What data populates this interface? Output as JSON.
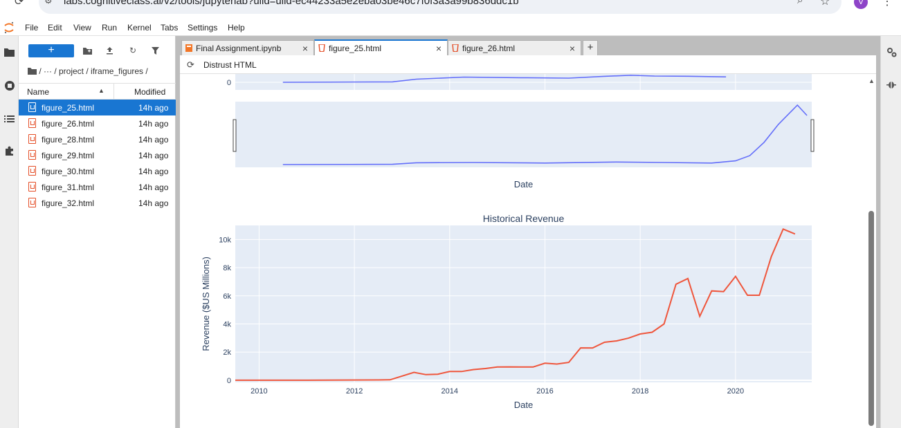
{
  "browser": {
    "url": "labs.cognitiveclass.ai/v2/tools/jupyterlab?ulid=ulid-ec44233a5e2eba03be46c7f0f3a3a99b836ddc1b",
    "profile_initial": "V"
  },
  "menu": {
    "items": [
      "File",
      "Edit",
      "View",
      "Run",
      "Kernel",
      "Tabs",
      "Settings",
      "Help"
    ]
  },
  "file_browser": {
    "new_label": "+",
    "breadcrumb": "/  ···  / project / iframe_figures /",
    "columns": {
      "name": "Name",
      "modified": "Modified"
    },
    "files": [
      {
        "name": "figure_25.html",
        "modified": "14h ago",
        "selected": true
      },
      {
        "name": "figure_26.html",
        "modified": "14h ago",
        "selected": false
      },
      {
        "name": "figure_28.html",
        "modified": "14h ago",
        "selected": false
      },
      {
        "name": "figure_29.html",
        "modified": "14h ago",
        "selected": false
      },
      {
        "name": "figure_30.html",
        "modified": "14h ago",
        "selected": false
      },
      {
        "name": "figure_31.html",
        "modified": "14h ago",
        "selected": false
      },
      {
        "name": "figure_32.html",
        "modified": "14h ago",
        "selected": false
      }
    ]
  },
  "tabs": [
    {
      "label": "Final Assignment.ipynb",
      "active": false,
      "icon": "notebook-icon"
    },
    {
      "label": "figure_25.html",
      "active": true,
      "icon": "html-file-icon"
    },
    {
      "label": "figure_26.html",
      "active": false,
      "icon": "html-file-icon"
    }
  ],
  "toolbar": {
    "distrust_label": "Distrust HTML"
  },
  "colors": {
    "accent": "#1976d2",
    "plot_bg": "#e5ecf6",
    "upper_line": "#636efa",
    "revenue_line": "#ef553b"
  },
  "chart_data": [
    {
      "type": "line",
      "title": "",
      "xlabel": "Date",
      "ylabel": "",
      "visible_ytick": "0",
      "note": "upper share-price panel, cropped at top",
      "series": [
        {
          "name": "",
          "x": [
            2010.5,
            2012.8,
            2013.3,
            2014.3,
            2015.5,
            2016.5,
            2017.2,
            2017.8,
            2018.3,
            2019.0,
            2019.8
          ],
          "values": [
            0,
            0.2,
            1.5,
            2.5,
            2.2,
            2.0,
            2.8,
            3.4,
            3.0,
            2.9,
            2.6
          ]
        }
      ]
    },
    {
      "type": "area",
      "title": "",
      "note": "range slider preview",
      "series": [
        {
          "name": "",
          "x": [
            2010.5,
            2012.8,
            2013.3,
            2014.5,
            2016.0,
            2017.5,
            2018.5,
            2019.5,
            2020.0,
            2020.3,
            2020.6,
            2020.9,
            2021.3,
            2021.5
          ],
          "values": [
            0,
            0.2,
            1.2,
            1.4,
            1.0,
            1.7,
            1.4,
            1.0,
            2.5,
            6.0,
            15.0,
            27.0,
            40.0,
            33.0
          ]
        }
      ]
    },
    {
      "type": "line",
      "title": "Historical Revenue",
      "xlabel": "Date",
      "ylabel": "Revenue ($US Millions)",
      "xticks": [
        "2010",
        "2012",
        "2014",
        "2016",
        "2018",
        "2020"
      ],
      "yticks": [
        "0",
        "2k",
        "4k",
        "6k",
        "8k",
        "10k"
      ],
      "ylim": [
        -150,
        11000
      ],
      "xlim": [
        2009.5,
        2021.6
      ],
      "grid": true,
      "series": [
        {
          "name": "Revenue",
          "x": [
            2009.5,
            2011.0,
            2012.5,
            2012.75,
            2013.25,
            2013.5,
            2013.75,
            2014.0,
            2014.25,
            2014.5,
            2014.75,
            2015.0,
            2015.25,
            2015.5,
            2015.75,
            2016.0,
            2016.25,
            2016.5,
            2016.75,
            2017.0,
            2017.25,
            2017.5,
            2017.75,
            2018.0,
            2018.25,
            2018.5,
            2018.75,
            2019.0,
            2019.25,
            2019.5,
            2019.75,
            2020.0,
            2020.25,
            2020.5,
            2020.75,
            2021.0,
            2021.25
          ],
          "values": [
            0,
            0,
            20,
            30,
            560,
            400,
            430,
            620,
            620,
            760,
            830,
            940,
            950,
            940,
            940,
            1210,
            1150,
            1270,
            2300,
            2290,
            2700,
            2790,
            2990,
            3290,
            3410,
            4000,
            6820,
            7230,
            4540,
            6350,
            6300,
            7380,
            6040,
            6040,
            8770,
            10740,
            10390
          ]
        }
      ]
    }
  ]
}
